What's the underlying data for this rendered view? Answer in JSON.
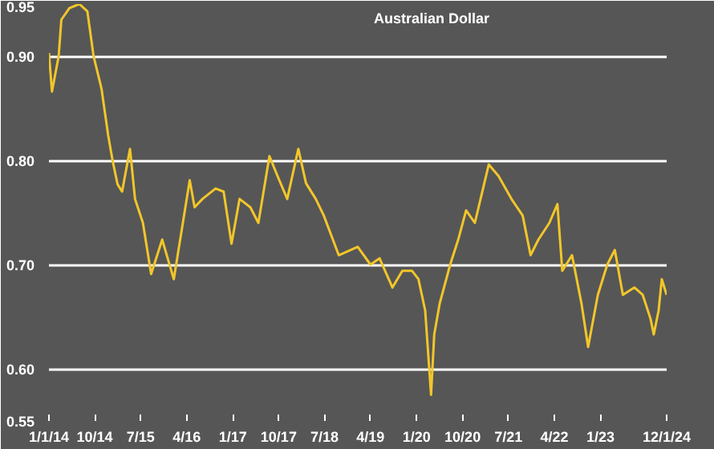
{
  "chart_data": {
    "type": "line",
    "title": "Australian Dollar",
    "x": [
      "2014-01-01",
      "2014-01-19",
      "2014-02-28",
      "2014-03-16",
      "2014-05-03",
      "2014-07-01",
      "2014-08-18",
      "2014-09-24",
      "2014-11-10",
      "2014-12-20",
      "2015-01-15",
      "2015-02-14",
      "2015-03-13",
      "2015-04-29",
      "2015-05-29",
      "2015-07-15",
      "2015-09-02",
      "2015-11-07",
      "2016-01-15",
      "2016-03-09",
      "2016-04-19",
      "2016-05-18",
      "2016-07-04",
      "2016-09-20",
      "2016-11-07",
      "2016-12-24",
      "2017-02-10",
      "2017-04-15",
      "2017-06-02",
      "2017-08-07",
      "2017-09-24",
      "2017-11-21",
      "2018-01-26",
      "2018-03-13",
      "2018-05-10",
      "2018-06-27",
      "2018-09-24",
      "2019-01-15",
      "2019-04-01",
      "2019-05-25",
      "2019-08-10",
      "2019-10-08",
      "2019-12-05",
      "2020-01-12",
      "2020-02-21",
      "2020-03-27",
      "2020-04-15",
      "2020-05-18",
      "2020-07-19",
      "2020-09-05",
      "2020-10-22",
      "2020-12-13",
      "2021-03-06",
      "2021-05-03",
      "2021-07-19",
      "2021-09-24",
      "2021-11-10",
      "2021-12-27",
      "2022-03-02",
      "2022-04-19",
      "2022-05-18",
      "2022-07-15",
      "2022-09-09",
      "2022-10-19",
      "2022-12-16",
      "2023-02-10",
      "2023-03-27",
      "2023-05-14",
      "2023-07-22",
      "2023-09-09",
      "2023-10-26",
      "2023-11-14",
      "2023-12-13",
      "2024-01-01",
      "2024-01-30"
    ],
    "series": [
      {
        "color": "#f2c62a",
        "values": [
          0.903,
          0.866,
          0.9,
          0.935,
          0.946,
          0.95,
          0.943,
          0.9,
          0.869,
          0.824,
          0.8,
          0.777,
          0.77,
          0.811,
          0.763,
          0.74,
          0.691,
          0.724,
          0.686,
          0.74,
          0.781,
          0.755,
          0.763,
          0.773,
          0.77,
          0.72,
          0.763,
          0.755,
          0.74,
          0.804,
          0.785,
          0.763,
          0.811,
          0.778,
          0.763,
          0.747,
          0.709,
          0.717,
          0.7,
          0.706,
          0.678,
          0.694,
          0.694,
          0.686,
          0.656,
          0.575,
          0.633,
          0.663,
          0.7,
          0.724,
          0.752,
          0.74,
          0.796,
          0.785,
          0.763,
          0.747,
          0.709,
          0.724,
          0.74,
          0.758,
          0.694,
          0.709,
          0.663,
          0.621,
          0.671,
          0.7,
          0.714,
          0.671,
          0.678,
          0.671,
          0.648,
          0.633,
          0.656,
          0.686,
          0.671
        ]
      }
    ],
    "xlim": [
      "2014-01-01",
      "2024-01-30"
    ],
    "xticks": [
      {
        "value": "2014-01-01",
        "label": "1/1/14"
      },
      {
        "value": "2014-10-01",
        "label": "10/14"
      },
      {
        "value": "2015-07-01",
        "label": "7/15"
      },
      {
        "value": "2016-04-01",
        "label": "4/16"
      },
      {
        "value": "2017-01-01",
        "label": "1/17"
      },
      {
        "value": "2017-10-01",
        "label": "10/17"
      },
      {
        "value": "2018-07-01",
        "label": "7/18"
      },
      {
        "value": "2019-04-01",
        "label": "4/19"
      },
      {
        "value": "2020-01-01",
        "label": "1/20"
      },
      {
        "value": "2020-10-01",
        "label": "10/20"
      },
      {
        "value": "2021-07-01",
        "label": "7/21"
      },
      {
        "value": "2022-04-01",
        "label": "4/22"
      },
      {
        "value": "2023-01-01",
        "label": "1/23"
      },
      {
        "value": "2024-01-30",
        "label": "12/1/24"
      }
    ],
    "ylim": [
      0.55,
      0.95
    ],
    "yticks": [
      {
        "value": 0.55,
        "label": "0.55"
      },
      {
        "value": 0.6,
        "label": "0.60"
      },
      {
        "value": 0.7,
        "label": "0.70"
      },
      {
        "value": 0.8,
        "label": "0.80"
      },
      {
        "value": 0.9,
        "label": "0.90"
      },
      {
        "value": 0.95,
        "label": "0.95"
      }
    ],
    "grid": "y",
    "marker": "none",
    "line_style": "solid"
  }
}
